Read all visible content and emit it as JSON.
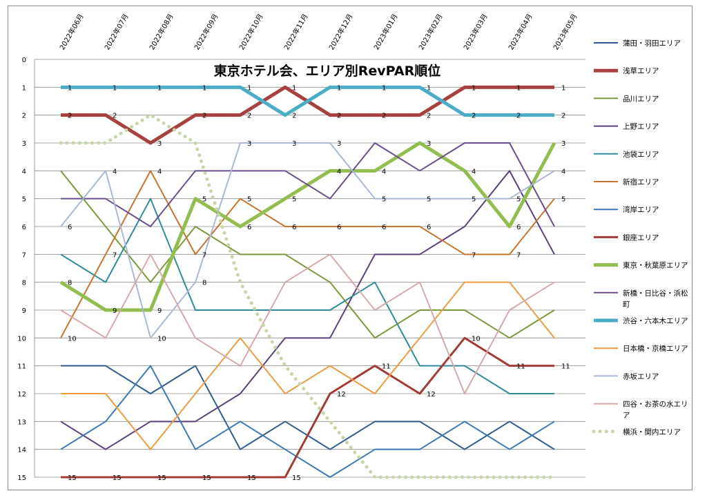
{
  "chart_data": {
    "type": "line",
    "title": "東京ホテル会、エリア別RevPAR順位",
    "xlabel": "",
    "ylabel": "",
    "x": [
      "2022年06月",
      "2022年07月",
      "2022年08月",
      "2022年09月",
      "2022年10月",
      "2022年11月",
      "2022年12月",
      "2023年01月",
      "2023年02月",
      "2023年03月",
      "2023年04月",
      "2023年05月"
    ],
    "ylim": [
      0,
      15
    ],
    "y_inverted": true,
    "y_ticks": [
      0,
      1,
      2,
      3,
      4,
      5,
      6,
      7,
      8,
      9,
      10,
      11,
      12,
      13,
      14,
      15
    ],
    "grid": true,
    "legend_position": "right",
    "series": [
      {
        "name": "蒲田・羽田エリア",
        "color": "#2e5a8e",
        "width": 2,
        "dash": "",
        "labeled": false,
        "values": [
          11,
          11,
          12,
          11,
          14,
          13,
          14,
          13,
          13,
          14,
          13,
          14
        ]
      },
      {
        "name": "浅草エリア",
        "color": "#a8413d",
        "width": 5,
        "dash": "",
        "labeled": true,
        "values": [
          2,
          2,
          3,
          2,
          2,
          1,
          2,
          2,
          2,
          1,
          1,
          1
        ]
      },
      {
        "name": "品川エリア",
        "color": "#7a9a3a",
        "width": 2,
        "dash": "",
        "labeled": false,
        "values": [
          4,
          6,
          8,
          6,
          7,
          7,
          8,
          10,
          9,
          9,
          10,
          9
        ]
      },
      {
        "name": "上野エリア",
        "color": "#5b3f7d",
        "width": 2,
        "dash": "",
        "labeled": false,
        "values": [
          13,
          14,
          13,
          13,
          12,
          10,
          10,
          7,
          7,
          6,
          4,
          7
        ]
      },
      {
        "name": "池袋エリア",
        "color": "#2e8a9a",
        "width": 2,
        "dash": "",
        "labeled": false,
        "values": [
          7,
          8,
          5,
          9,
          9,
          9,
          9,
          8,
          11,
          11,
          12,
          12
        ]
      },
      {
        "name": "新宿エリア",
        "color": "#c8732a",
        "width": 2,
        "dash": "",
        "labeled": true,
        "values": [
          10,
          7,
          4,
          7,
          5,
          6,
          6,
          6,
          6,
          7,
          7,
          5
        ]
      },
      {
        "name": "湾岸エリア",
        "color": "#3a78b8",
        "width": 2,
        "dash": "",
        "labeled": false,
        "values": [
          14,
          13,
          11,
          14,
          13,
          14,
          15,
          14,
          14,
          13,
          14,
          13
        ]
      },
      {
        "name": "銀座エリア",
        "color": "#a33a35",
        "width": 3,
        "dash": "",
        "labeled": true,
        "values": [
          15,
          15,
          15,
          15,
          15,
          15,
          12,
          11,
          12,
          10,
          11,
          11
        ]
      },
      {
        "name": "東京・秋葉原エリア",
        "color": "#92bd4f",
        "width": 5,
        "dash": "",
        "labeled": true,
        "values": [
          8,
          9,
          9,
          5,
          6,
          5,
          4,
          4,
          3,
          4,
          6,
          3
        ]
      },
      {
        "name": "新橋・日比谷・浜松町",
        "color": "#6b4c8f",
        "width": 2,
        "dash": "",
        "labeled": false,
        "values": [
          5,
          5,
          6,
          4,
          4,
          4,
          5,
          3,
          4,
          3,
          3,
          6
        ]
      },
      {
        "name": "渋谷・六本木エリア",
        "color": "#4aacc6",
        "width": 5,
        "dash": "",
        "labeled": true,
        "values": [
          1,
          1,
          1,
          1,
          1,
          2,
          1,
          1,
          1,
          2,
          2,
          2
        ]
      },
      {
        "name": "日本橋・京橋エリア",
        "color": "#f09a3e",
        "width": 2,
        "dash": "",
        "labeled": false,
        "values": [
          12,
          12,
          14,
          12,
          10,
          12,
          11,
          12,
          10,
          8,
          8,
          10
        ]
      },
      {
        "name": "赤坂エリア",
        "color": "#a8b8d8",
        "width": 2,
        "dash": "",
        "labeled": true,
        "values": [
          6,
          4,
          10,
          8,
          3,
          3,
          3,
          5,
          5,
          5,
          5,
          4
        ]
      },
      {
        "name": "四谷・お茶の水エリア",
        "color": "#d8a8a8",
        "width": 2,
        "dash": "",
        "labeled": false,
        "values": [
          9,
          10,
          7,
          10,
          11,
          8,
          7,
          9,
          8,
          12,
          9,
          8
        ]
      },
      {
        "name": "横浜・関内エリア",
        "color": "#c4d7a4",
        "width": 5,
        "dash": "0.1,9",
        "labeled": false,
        "values": [
          3,
          3,
          2,
          3,
          8,
          11,
          13,
          15,
          15,
          15,
          15,
          15
        ]
      }
    ]
  }
}
